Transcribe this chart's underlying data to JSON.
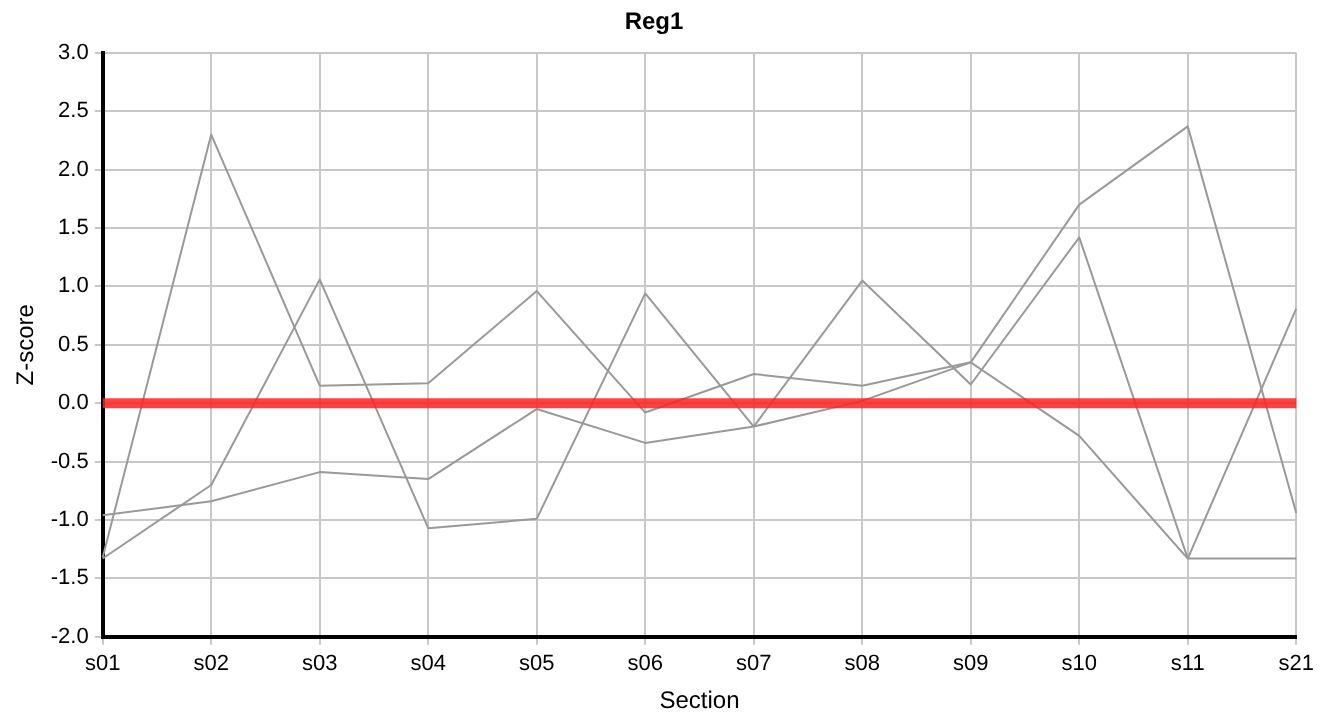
{
  "chart_data": {
    "type": "line",
    "title": "Reg1",
    "xlabel": "Section",
    "ylabel": "Z-score",
    "categories": [
      "s01",
      "s02",
      "s03",
      "s04",
      "s05",
      "s06",
      "s07",
      "s08",
      "s09",
      "s10",
      "s11",
      "s21"
    ],
    "series": [
      {
        "color": "#999999",
        "values": [
          -1.32,
          2.3,
          0.15,
          0.17,
          0.96,
          -0.08,
          0.25,
          0.15,
          0.35,
          1.7,
          2.37,
          -0.94
        ]
      },
      {
        "color": "#999999",
        "values": [
          -0.96,
          -0.84,
          -0.59,
          -0.65,
          -0.05,
          -0.34,
          -0.2,
          0.02,
          0.35,
          -0.28,
          -1.33,
          -1.33
        ]
      },
      {
        "color": "#999999",
        "values": [
          -1.33,
          -0.7,
          1.06,
          -1.07,
          -0.99,
          0.94,
          -0.2,
          1.05,
          0.16,
          1.42,
          -1.33,
          0.81
        ]
      }
    ],
    "ylim": [
      -2,
      3
    ],
    "yticks": [
      {
        "value": -2,
        "label": "-2.0"
      },
      {
        "value": -1.5,
        "label": "-1.5"
      },
      {
        "value": -1,
        "label": "-1.0"
      },
      {
        "value": -0.5,
        "label": "-0.5"
      },
      {
        "value": 0,
        "label": "0.0"
      },
      {
        "value": 0.5,
        "label": "0.5"
      },
      {
        "value": 1,
        "label": "1.0"
      },
      {
        "value": 1.5,
        "label": "1.5"
      },
      {
        "value": 2,
        "label": "2.0"
      },
      {
        "value": 2.5,
        "label": "2.5"
      },
      {
        "value": 3,
        "label": "3.0"
      }
    ],
    "ref_lines": [
      {
        "axis": "y",
        "value": 0,
        "color": "#ff2020"
      }
    ],
    "grid": true,
    "legend": false,
    "marker": "none",
    "line_style": "solid"
  }
}
